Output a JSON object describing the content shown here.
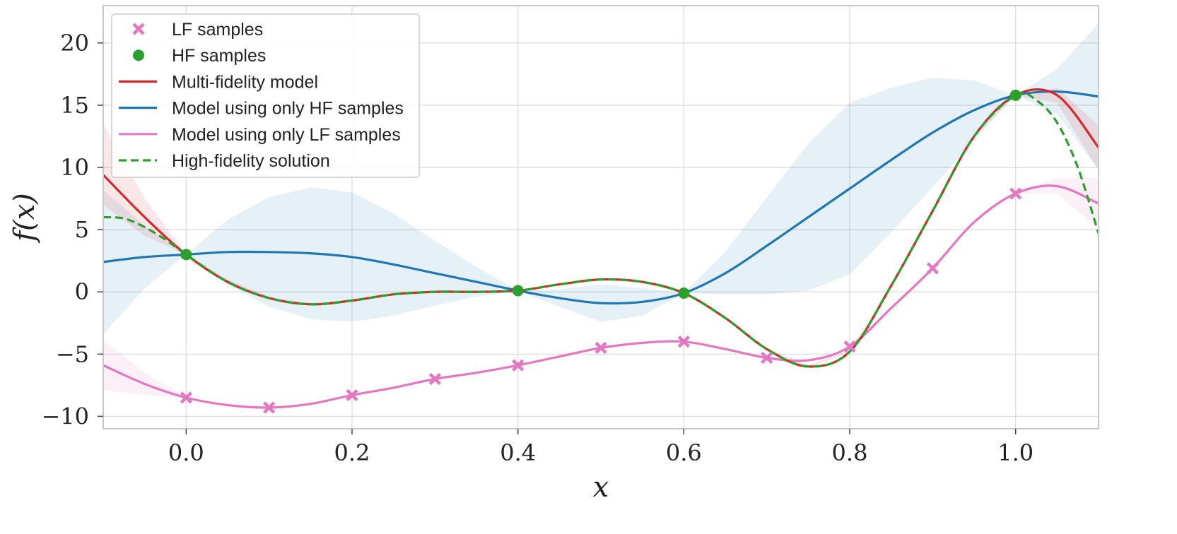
{
  "chart_data": {
    "type": "line",
    "xlabel": "x",
    "ylabel": "f(x)",
    "xlim": [
      -0.1,
      1.1
    ],
    "ylim": [
      -11,
      23
    ],
    "xticks": [
      0.0,
      0.2,
      0.4,
      0.6,
      0.8,
      1.0
    ],
    "xtick_labels": [
      "0.0",
      "0.2",
      "0.4",
      "0.6",
      "0.8",
      "1.0"
    ],
    "yticks": [
      -10,
      -5,
      0,
      5,
      10,
      15,
      20
    ],
    "ytick_labels": [
      "−10",
      "−5",
      "0",
      "5",
      "10",
      "15",
      "20"
    ],
    "grid": true,
    "legend_position": "top-left",
    "legend": [
      {
        "label": "LF samples",
        "marker": "x",
        "color": "#e377c2"
      },
      {
        "label": "HF samples",
        "marker": "circle",
        "color": "#2ca02c"
      },
      {
        "label": "Multi-fidelity model",
        "marker": "line",
        "color": "#d62728"
      },
      {
        "label": "Model using only HF samples",
        "marker": "line",
        "color": "#1f77b4"
      },
      {
        "label": "Model using only LF samples",
        "marker": "line",
        "color": "#e377c2"
      },
      {
        "label": "High-fidelity solution",
        "marker": "dashed",
        "color": "#2ca02c"
      }
    ],
    "lf_samples": {
      "x": [
        0.0,
        0.1,
        0.2,
        0.3,
        0.4,
        0.5,
        0.6,
        0.7,
        0.8,
        0.9,
        1.0
      ],
      "y": [
        -8.5,
        -9.3,
        -8.3,
        -7.0,
        -5.9,
        -4.5,
        -4.0,
        -5.3,
        -4.4,
        1.9,
        7.9
      ]
    },
    "hf_samples": {
      "x": [
        0.0,
        0.4,
        0.6,
        1.0
      ],
      "y": [
        3.0,
        0.1,
        -0.1,
        15.8
      ]
    },
    "series": [
      {
        "name": "Multi-fidelity model",
        "color": "#d62728",
        "style": "solid",
        "x": [
          -0.1,
          -0.05,
          0.0,
          0.05,
          0.1,
          0.15,
          0.2,
          0.25,
          0.3,
          0.35,
          0.4,
          0.45,
          0.5,
          0.55,
          0.6,
          0.65,
          0.7,
          0.75,
          0.8,
          0.85,
          0.9,
          0.95,
          1.0,
          1.05,
          1.1
        ],
        "y": [
          9.4,
          6.0,
          3.0,
          0.8,
          -0.5,
          -1.0,
          -0.7,
          -0.2,
          0.0,
          0.0,
          0.1,
          0.6,
          1.0,
          0.8,
          -0.1,
          -2.1,
          -4.6,
          -6.0,
          -4.8,
          0.5,
          6.5,
          12.5,
          15.8,
          15.8,
          11.6
        ],
        "band_lower": [
          7.0,
          4.5,
          3.0,
          0.6,
          -0.6,
          -1.1,
          -0.8,
          -0.3,
          -0.1,
          -0.1,
          0.1,
          0.5,
          0.9,
          0.7,
          -0.1,
          -2.2,
          -4.7,
          -6.1,
          -4.9,
          0.4,
          6.4,
          12.4,
          15.8,
          15.2,
          9.8
        ],
        "band_upper": [
          13.5,
          7.5,
          3.0,
          1.0,
          -0.4,
          -0.9,
          -0.6,
          -0.1,
          0.1,
          0.1,
          0.1,
          0.7,
          1.1,
          0.9,
          -0.1,
          -2.0,
          -4.5,
          -5.9,
          -4.7,
          0.6,
          6.6,
          12.6,
          15.8,
          16.4,
          13.4
        ]
      },
      {
        "name": "Model using only HF samples",
        "color": "#1f77b4",
        "style": "solid",
        "x": [
          -0.1,
          -0.05,
          0.0,
          0.05,
          0.1,
          0.15,
          0.2,
          0.25,
          0.3,
          0.35,
          0.4,
          0.45,
          0.5,
          0.55,
          0.6,
          0.65,
          0.7,
          0.75,
          0.8,
          0.85,
          0.9,
          0.95,
          1.0,
          1.05,
          1.1
        ],
        "y": [
          2.4,
          2.8,
          3.0,
          3.2,
          3.2,
          3.1,
          2.8,
          2.2,
          1.5,
          0.8,
          0.1,
          -0.5,
          -0.9,
          -0.8,
          -0.1,
          1.5,
          3.7,
          6.0,
          8.3,
          10.6,
          12.8,
          14.6,
          15.8,
          16.1,
          15.7
        ],
        "band_lower": [
          -3.4,
          0.3,
          3.0,
          0.6,
          -1.2,
          -2.2,
          -2.4,
          -1.9,
          -1.1,
          -0.4,
          0.1,
          -1.2,
          -2.4,
          -1.9,
          -0.1,
          -0.2,
          -0.2,
          0.1,
          1.4,
          4.8,
          8.4,
          12.2,
          15.8,
          14.3,
          9.8
        ],
        "band_upper": [
          8.2,
          5.3,
          3.0,
          5.8,
          7.6,
          8.4,
          8.0,
          6.3,
          4.1,
          2.0,
          0.1,
          0.2,
          0.6,
          0.3,
          -0.1,
          3.2,
          7.6,
          11.9,
          15.2,
          16.4,
          17.2,
          17.0,
          15.8,
          17.9,
          21.6
        ]
      },
      {
        "name": "Model using only LF samples",
        "color": "#e377c2",
        "style": "solid",
        "x": [
          -0.1,
          -0.05,
          0.0,
          0.05,
          0.1,
          0.15,
          0.2,
          0.25,
          0.3,
          0.35,
          0.4,
          0.45,
          0.5,
          0.55,
          0.6,
          0.65,
          0.7,
          0.75,
          0.8,
          0.85,
          0.9,
          0.95,
          1.0,
          1.05,
          1.1
        ],
        "y": [
          -5.9,
          -7.4,
          -8.5,
          -9.1,
          -9.3,
          -9.0,
          -8.3,
          -7.7,
          -7.0,
          -6.5,
          -5.9,
          -5.2,
          -4.5,
          -4.1,
          -4.0,
          -4.6,
          -5.3,
          -5.5,
          -4.4,
          -1.3,
          1.9,
          5.6,
          7.9,
          8.5,
          7.1
        ],
        "band_lower": [
          -7.9,
          -8.3,
          -8.5,
          -9.2,
          -9.3,
          -9.1,
          -8.3,
          -7.8,
          -7.0,
          -6.6,
          -5.9,
          -5.3,
          -4.5,
          -4.2,
          -4.0,
          -4.7,
          -5.3,
          -5.6,
          -4.4,
          -1.4,
          1.9,
          5.5,
          7.9,
          7.9,
          5.0
        ],
        "band_upper": [
          -3.9,
          -6.5,
          -8.5,
          -9.0,
          -9.3,
          -8.9,
          -8.3,
          -7.6,
          -7.0,
          -6.4,
          -5.9,
          -5.1,
          -4.5,
          -4.0,
          -4.0,
          -4.5,
          -5.3,
          -5.4,
          -4.4,
          -1.2,
          1.9,
          5.7,
          7.9,
          9.1,
          9.2
        ]
      },
      {
        "name": "High-fidelity solution",
        "color": "#2ca02c",
        "style": "dashed",
        "x": [
          -0.1,
          -0.075,
          -0.05,
          -0.025,
          0.0,
          0.05,
          0.1,
          0.15,
          0.2,
          0.25,
          0.3,
          0.35,
          0.4,
          0.45,
          0.5,
          0.55,
          0.6,
          0.65,
          0.7,
          0.75,
          0.8,
          0.85,
          0.9,
          0.95,
          1.0,
          1.025,
          1.05,
          1.075,
          1.1
        ],
        "y": [
          6.0,
          5.9,
          5.2,
          4.2,
          3.0,
          0.8,
          -0.5,
          -1.0,
          -0.7,
          -0.2,
          0.0,
          0.0,
          0.1,
          0.6,
          1.0,
          0.8,
          -0.1,
          -2.1,
          -4.6,
          -6.0,
          -4.8,
          0.5,
          6.5,
          12.5,
          15.8,
          15.4,
          13.6,
          10.0,
          4.7
        ]
      }
    ]
  }
}
